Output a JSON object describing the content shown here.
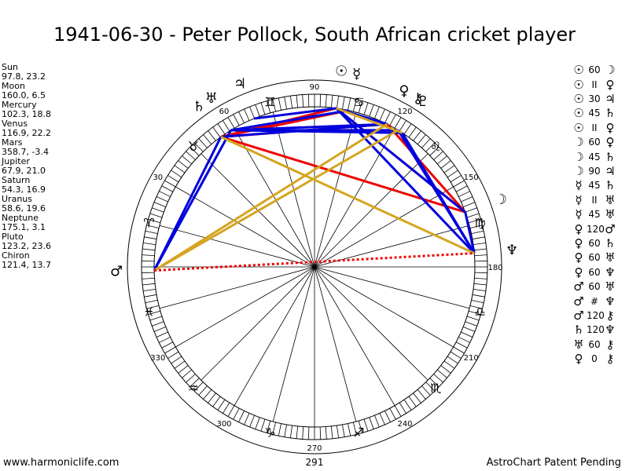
{
  "header": {
    "title": "1941-06-30 - Peter Pollock, South African cricket player"
  },
  "planets": [
    {
      "name": "Sun",
      "coords": "97.8, 23.2",
      "glyph": "☉",
      "lon": 97.8
    },
    {
      "name": "Moon",
      "coords": "160.0, 6.5",
      "glyph": "☽",
      "lon": 160.0
    },
    {
      "name": "Mercury",
      "coords": "102.3, 18.8",
      "glyph": "☿",
      "lon": 102.3
    },
    {
      "name": "Venus",
      "coords": "116.9, 22.2",
      "glyph": "♀",
      "lon": 116.9
    },
    {
      "name": "Mars",
      "coords": "358.7, -3.4",
      "glyph": "♂",
      "lon": 358.7
    },
    {
      "name": "Jupiter",
      "coords": "67.9, 21.0",
      "glyph": "♃",
      "lon": 67.9
    },
    {
      "name": "Saturn",
      "coords": "54.3, 16.9",
      "glyph": "♄",
      "lon": 54.3
    },
    {
      "name": "Uranus",
      "coords": "58.6, 19.6",
      "glyph": "♅",
      "lon": 58.6
    },
    {
      "name": "Neptune",
      "coords": "175.1, 3.1",
      "glyph": "♆",
      "lon": 175.1
    },
    {
      "name": "Pluto",
      "coords": "123.2, 23.6",
      "glyph": "♇",
      "lon": 123.2
    },
    {
      "name": "Chiron",
      "coords": "121.4, 13.7",
      "glyph": "⚷",
      "lon": 121.4
    }
  ],
  "aspects": [
    {
      "p1": "☉",
      "symbol": "60",
      "p2": "☽"
    },
    {
      "p1": "☉",
      "symbol": "II",
      "p2": "♀"
    },
    {
      "p1": "☉",
      "symbol": "30",
      "p2": "♃"
    },
    {
      "p1": "☉",
      "symbol": "45",
      "p2": "♄"
    },
    {
      "p1": "☉",
      "symbol": "II",
      "p2": "♀"
    },
    {
      "p1": "☽",
      "symbol": "60",
      "p2": "♀"
    },
    {
      "p1": "☽",
      "symbol": "45",
      "p2": "♄"
    },
    {
      "p1": "☽",
      "symbol": "90",
      "p2": "♃"
    },
    {
      "p1": "☿",
      "symbol": "45",
      "p2": "♄"
    },
    {
      "p1": "☿",
      "symbol": "II",
      "p2": "♅"
    },
    {
      "p1": "☿",
      "symbol": "45",
      "p2": "♅"
    },
    {
      "p1": "♀",
      "symbol": "120",
      "p2": "♂"
    },
    {
      "p1": "♀",
      "symbol": "60",
      "p2": "♄"
    },
    {
      "p1": "♀",
      "symbol": "60",
      "p2": "♅"
    },
    {
      "p1": "♀",
      "symbol": "60",
      "p2": "♆"
    },
    {
      "p1": "♂",
      "symbol": "60",
      "p2": "♅"
    },
    {
      "p1": "♂",
      "symbol": "#",
      "p2": "♆"
    },
    {
      "p1": "♂",
      "symbol": "120",
      "p2": "⚷"
    },
    {
      "p1": "♄",
      "symbol": "120",
      "p2": "♆"
    },
    {
      "p1": "♅",
      "symbol": "60",
      "p2": "⚷"
    },
    {
      "p1": "♀",
      "symbol": "0",
      "p2": "⚷"
    }
  ],
  "signs": [
    {
      "glyph": "♈",
      "lon": 15
    },
    {
      "glyph": "♉",
      "lon": 45
    },
    {
      "glyph": "♊",
      "lon": 75
    },
    {
      "glyph": "♋",
      "lon": 105
    },
    {
      "glyph": "♌",
      "lon": 135
    },
    {
      "glyph": "♍",
      "lon": 165
    },
    {
      "glyph": "♎",
      "lon": 195
    },
    {
      "glyph": "♏",
      "lon": 225
    },
    {
      "glyph": "♐",
      "lon": 255
    },
    {
      "glyph": "♑",
      "lon": 285
    },
    {
      "glyph": "♒",
      "lon": 315
    },
    {
      "glyph": "♓",
      "lon": 345
    }
  ],
  "degree_labels": [
    {
      "text": "90",
      "lon": 90
    },
    {
      "text": "60",
      "lon": 60
    },
    {
      "text": "30",
      "lon": 30
    },
    {
      "text": "180",
      "lon": 180
    },
    {
      "text": "150",
      "lon": 150
    },
    {
      "text": "120",
      "lon": 120
    },
    {
      "text": "210",
      "lon": 210
    },
    {
      "text": "240",
      "lon": 240
    },
    {
      "text": "270",
      "lon": 270
    },
    {
      "text": "300",
      "lon": 300
    },
    {
      "text": "330",
      "lon": 330
    }
  ],
  "aspect_lines": [
    {
      "a": 97.8,
      "b": 160.0,
      "color": "#ee0000"
    },
    {
      "a": 97.8,
      "b": 54.3,
      "color": "#ee0000"
    },
    {
      "a": 102.3,
      "b": 54.3,
      "color": "#ee0000"
    },
    {
      "a": 116.9,
      "b": 54.3,
      "color": "#ee0000"
    },
    {
      "a": 116.9,
      "b": 160.0,
      "color": "#ee0000"
    },
    {
      "a": 160.0,
      "b": 54.3,
      "color": "#ee0000"
    },
    {
      "a": 123.2,
      "b": 175.1,
      "color": "#0000dd"
    },
    {
      "a": 121.4,
      "b": 175.1,
      "color": "#0000dd"
    },
    {
      "a": 97.8,
      "b": 160.0,
      "color": "#0000dd"
    },
    {
      "a": 97.8,
      "b": 175.1,
      "color": "#0000dd"
    },
    {
      "a": 97.8,
      "b": 116.9,
      "color": "#0000dd"
    },
    {
      "a": 97.8,
      "b": 67.9,
      "color": "#0000dd"
    },
    {
      "a": 102.3,
      "b": 58.6,
      "color": "#0000dd"
    },
    {
      "a": 116.9,
      "b": 54.3,
      "color": "#0000dd"
    },
    {
      "a": 116.9,
      "b": 58.6,
      "color": "#0000dd"
    },
    {
      "a": 123.2,
      "b": 58.6,
      "color": "#0000dd"
    },
    {
      "a": 121.4,
      "b": 58.6,
      "color": "#0000dd"
    },
    {
      "a": 58.6,
      "b": 358.7,
      "color": "#0000dd"
    },
    {
      "a": 54.3,
      "b": 358.7,
      "color": "#0000dd"
    },
    {
      "a": 160.0,
      "b": 175.1,
      "color": "#0000dd"
    },
    {
      "a": 116.9,
      "b": 358.7,
      "color": "#d4a520"
    },
    {
      "a": 121.4,
      "b": 358.7,
      "color": "#d4a520"
    },
    {
      "a": 54.3,
      "b": 175.1,
      "color": "#d4a520"
    },
    {
      "a": 123.2,
      "b": 97.8,
      "color": "#d4a520"
    },
    {
      "a": 358.7,
      "b": 175.1,
      "color": "#ee0000",
      "dashed": true
    }
  ],
  "colors": {
    "red": "#ee0000",
    "blue": "#0000dd",
    "gold": "#d4a520"
  },
  "footer": {
    "left": "www.harmoniclife.com",
    "center": "291",
    "right": "AstroChart Patent Pending"
  }
}
